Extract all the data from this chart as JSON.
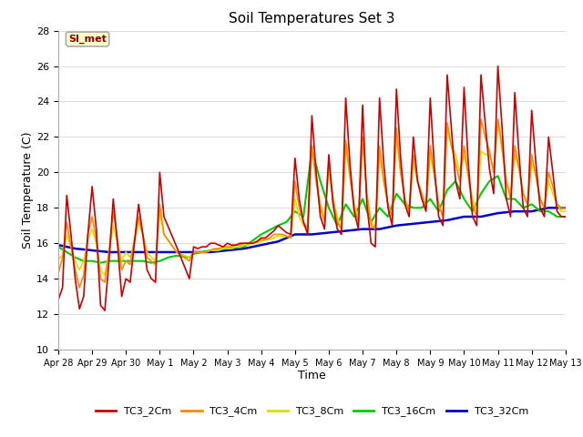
{
  "title": "Soil Temperatures Set 3",
  "xlabel": "Time",
  "ylabel": "Soil Temperature (C)",
  "ylim": [
    10,
    28
  ],
  "xlim": [
    0,
    15
  ],
  "annotation_text": "SI_met",
  "annotation_bg": "#ffffcc",
  "annotation_border": "#aaaaaa",
  "annotation_text_color": "#880000",
  "fig_bg": "#ffffff",
  "plot_bg": "#ffffff",
  "xtick_labels": [
    "Apr 28",
    "Apr 29",
    "Apr 30",
    "May 1",
    "May 2",
    "May 3",
    "May 4",
    "May 5",
    "May 6",
    "May 7",
    "May 8",
    "May 9",
    "May 10",
    "May 11",
    "May 12",
    "May 13"
  ],
  "yticks": [
    10,
    12,
    14,
    16,
    18,
    20,
    22,
    24,
    26,
    28
  ],
  "series_order": [
    "TC3_32Cm",
    "TC3_16Cm",
    "TC3_8Cm",
    "TC3_4Cm",
    "TC3_2Cm"
  ],
  "series": {
    "TC3_2Cm": {
      "color": "#cc0000",
      "lw": 1.2,
      "x": [
        0.0,
        0.125,
        0.25,
        0.375,
        0.5,
        0.625,
        0.75,
        0.875,
        1.0,
        1.125,
        1.25,
        1.375,
        1.5,
        1.625,
        1.75,
        1.875,
        2.0,
        2.125,
        2.25,
        2.375,
        2.5,
        2.625,
        2.75,
        2.875,
        3.0,
        3.125,
        3.5,
        3.875,
        4.0,
        4.125,
        4.25,
        4.375,
        4.5,
        4.625,
        4.75,
        4.875,
        5.0,
        5.125,
        5.25,
        5.375,
        5.5,
        5.625,
        5.75,
        5.875,
        6.0,
        6.125,
        6.25,
        6.375,
        6.5,
        6.625,
        6.75,
        6.875,
        7.0,
        7.125,
        7.25,
        7.375,
        7.5,
        7.625,
        7.75,
        7.875,
        8.0,
        8.125,
        8.25,
        8.375,
        8.5,
        8.625,
        8.75,
        8.875,
        9.0,
        9.125,
        9.25,
        9.375,
        9.5,
        9.625,
        9.75,
        9.875,
        10.0,
        10.125,
        10.25,
        10.375,
        10.5,
        10.625,
        10.75,
        10.875,
        11.0,
        11.125,
        11.25,
        11.375,
        11.5,
        11.625,
        11.75,
        11.875,
        12.0,
        12.125,
        12.25,
        12.375,
        12.5,
        12.625,
        12.75,
        12.875,
        13.0,
        13.125,
        13.25,
        13.375,
        13.5,
        13.625,
        13.75,
        13.875,
        14.0,
        14.125,
        14.25,
        14.375,
        14.5,
        14.625,
        14.75,
        14.875,
        15.0
      ],
      "y": [
        12.8,
        13.5,
        18.7,
        16.5,
        14.0,
        12.3,
        13.0,
        16.5,
        19.2,
        16.8,
        12.5,
        12.2,
        15.0,
        18.5,
        16.0,
        13.0,
        14.0,
        13.8,
        16.0,
        18.2,
        16.5,
        14.5,
        14.0,
        13.8,
        20.0,
        17.5,
        15.8,
        14.0,
        15.8,
        15.7,
        15.8,
        15.8,
        16.0,
        16.0,
        15.9,
        15.8,
        16.0,
        15.9,
        15.9,
        16.0,
        16.0,
        16.0,
        16.0,
        16.1,
        16.3,
        16.3,
        16.5,
        16.7,
        17.0,
        16.8,
        16.6,
        16.5,
        20.8,
        18.5,
        17.2,
        16.5,
        23.2,
        20.0,
        17.5,
        16.8,
        21.0,
        18.2,
        16.8,
        16.5,
        24.2,
        20.5,
        17.8,
        16.8,
        23.8,
        18.2,
        16.0,
        15.8,
        24.2,
        20.5,
        18.0,
        17.0,
        24.7,
        20.8,
        18.2,
        17.5,
        22.0,
        19.5,
        18.5,
        17.8,
        24.2,
        20.2,
        17.5,
        17.0,
        25.5,
        22.5,
        19.5,
        18.5,
        24.8,
        20.5,
        17.5,
        17.0,
        25.5,
        22.8,
        20.2,
        18.8,
        26.0,
        22.5,
        18.5,
        17.5,
        24.5,
        21.0,
        18.0,
        17.5,
        23.5,
        20.5,
        18.0,
        17.5,
        22.0,
        20.0,
        17.8,
        17.5,
        17.5
      ]
    },
    "TC3_4Cm": {
      "color": "#ff8800",
      "lw": 1.2,
      "x": [
        0.0,
        0.125,
        0.25,
        0.375,
        0.5,
        0.625,
        0.75,
        0.875,
        1.0,
        1.125,
        1.25,
        1.375,
        1.5,
        1.625,
        1.75,
        1.875,
        2.0,
        2.125,
        2.25,
        2.375,
        2.5,
        2.625,
        2.75,
        2.875,
        3.0,
        3.125,
        3.5,
        3.875,
        4.0,
        4.125,
        4.25,
        4.375,
        4.5,
        4.625,
        4.75,
        4.875,
        5.0,
        5.125,
        5.25,
        5.375,
        5.5,
        5.625,
        5.75,
        5.875,
        6.0,
        6.125,
        6.25,
        6.375,
        6.5,
        6.625,
        6.75,
        6.875,
        7.0,
        7.125,
        7.25,
        7.375,
        7.5,
        7.625,
        7.75,
        7.875,
        8.0,
        8.125,
        8.25,
        8.375,
        8.5,
        8.625,
        8.75,
        8.875,
        9.0,
        9.125,
        9.25,
        9.375,
        9.5,
        9.625,
        9.75,
        9.875,
        10.0,
        10.125,
        10.25,
        10.375,
        10.5,
        10.625,
        10.75,
        10.875,
        11.0,
        11.125,
        11.25,
        11.375,
        11.5,
        11.625,
        11.75,
        11.875,
        12.0,
        12.125,
        12.25,
        12.375,
        12.5,
        12.625,
        12.75,
        12.875,
        13.0,
        13.125,
        13.25,
        13.375,
        13.5,
        13.625,
        13.75,
        13.875,
        14.0,
        14.125,
        14.25,
        14.375,
        14.5,
        14.625,
        14.75,
        14.875,
        15.0
      ],
      "y": [
        14.3,
        15.2,
        17.2,
        15.8,
        14.5,
        13.5,
        14.2,
        16.5,
        17.5,
        16.2,
        14.0,
        13.8,
        15.5,
        17.8,
        16.2,
        14.5,
        15.0,
        14.8,
        16.2,
        17.5,
        16.5,
        15.2,
        15.0,
        14.8,
        18.2,
        16.5,
        15.5,
        15.0,
        15.5,
        15.5,
        15.5,
        15.5,
        15.6,
        15.7,
        15.7,
        15.8,
        15.8,
        15.8,
        15.9,
        15.9,
        16.0,
        16.0,
        16.0,
        16.1,
        16.2,
        16.2,
        16.3,
        16.5,
        16.5,
        16.5,
        16.4,
        16.3,
        19.5,
        18.0,
        17.2,
        16.8,
        21.5,
        19.5,
        18.0,
        17.2,
        20.5,
        18.5,
        17.2,
        16.8,
        21.8,
        19.8,
        18.0,
        17.2,
        22.0,
        18.8,
        17.0,
        16.8,
        21.5,
        19.5,
        18.2,
        17.5,
        22.5,
        20.0,
        18.5,
        17.8,
        21.0,
        19.5,
        18.8,
        18.0,
        21.5,
        19.8,
        18.2,
        17.5,
        22.8,
        21.5,
        20.5,
        19.5,
        21.5,
        19.8,
        18.2,
        17.5,
        23.0,
        22.0,
        21.2,
        20.0,
        23.0,
        21.5,
        19.5,
        18.5,
        21.5,
        20.2,
        18.8,
        18.2,
        21.0,
        19.8,
        18.5,
        18.0,
        20.0,
        19.2,
        18.2,
        18.0,
        18.0
      ]
    },
    "TC3_8Cm": {
      "color": "#dddd00",
      "lw": 1.2,
      "x": [
        0.0,
        0.125,
        0.25,
        0.375,
        0.5,
        0.625,
        0.75,
        0.875,
        1.0,
        1.125,
        1.25,
        1.375,
        1.5,
        1.625,
        1.75,
        1.875,
        2.0,
        2.125,
        2.25,
        2.375,
        2.5,
        2.625,
        2.75,
        2.875,
        3.0,
        3.125,
        3.5,
        3.875,
        4.0,
        4.125,
        4.25,
        4.375,
        4.5,
        4.625,
        4.75,
        4.875,
        5.0,
        5.125,
        5.25,
        5.375,
        5.5,
        5.625,
        5.75,
        5.875,
        6.0,
        6.125,
        6.25,
        6.375,
        6.5,
        6.625,
        6.75,
        6.875,
        7.0,
        7.125,
        7.25,
        7.375,
        7.5,
        7.625,
        7.75,
        7.875,
        8.0,
        8.125,
        8.25,
        8.375,
        8.5,
        8.625,
        8.75,
        8.875,
        9.0,
        9.125,
        9.25,
        9.375,
        9.5,
        9.625,
        9.75,
        9.875,
        10.0,
        10.125,
        10.25,
        10.375,
        10.5,
        10.625,
        10.75,
        10.875,
        11.0,
        11.125,
        11.25,
        11.375,
        11.5,
        11.625,
        11.75,
        11.875,
        12.0,
        12.125,
        12.25,
        12.375,
        12.5,
        12.625,
        12.75,
        12.875,
        13.0,
        13.125,
        13.25,
        13.375,
        13.5,
        13.625,
        13.75,
        13.875,
        14.0,
        14.125,
        14.25,
        14.375,
        14.5,
        14.625,
        14.75,
        14.875,
        15.0
      ],
      "y": [
        15.1,
        15.3,
        16.5,
        15.8,
        15.0,
        14.5,
        15.0,
        16.2,
        16.8,
        16.0,
        14.5,
        14.2,
        15.5,
        17.0,
        16.0,
        15.0,
        15.5,
        15.2,
        16.0,
        17.2,
        16.5,
        15.5,
        15.2,
        15.0,
        17.8,
        16.5,
        15.5,
        15.2,
        15.5,
        15.5,
        15.5,
        15.5,
        15.6,
        15.6,
        15.6,
        15.7,
        15.7,
        15.7,
        15.8,
        15.8,
        15.9,
        15.9,
        16.0,
        16.0,
        16.1,
        16.2,
        16.2,
        16.3,
        16.4,
        16.4,
        16.4,
        16.3,
        18.5,
        17.5,
        17.0,
        16.8,
        21.5,
        19.8,
        18.2,
        17.5,
        20.2,
        18.5,
        17.5,
        16.8,
        21.5,
        19.8,
        18.2,
        17.5,
        21.8,
        18.8,
        17.2,
        16.8,
        21.0,
        19.5,
        18.2,
        17.5,
        22.0,
        20.0,
        18.5,
        17.8,
        20.5,
        19.5,
        18.8,
        18.0,
        21.0,
        19.8,
        18.2,
        17.5,
        22.5,
        21.5,
        21.0,
        20.0,
        21.0,
        19.8,
        18.5,
        17.8,
        21.2,
        21.0,
        21.0,
        20.2,
        22.8,
        21.2,
        19.5,
        18.8,
        21.0,
        20.2,
        18.8,
        18.2,
        20.5,
        19.8,
        18.5,
        18.0,
        19.5,
        18.8,
        18.2,
        17.8,
        17.8
      ]
    },
    "TC3_16Cm": {
      "color": "#00cc00",
      "lw": 1.5,
      "x": [
        0.0,
        0.25,
        0.5,
        0.75,
        1.0,
        1.25,
        1.5,
        1.75,
        2.0,
        2.25,
        2.5,
        2.75,
        3.0,
        3.25,
        3.5,
        3.875,
        4.0,
        4.5,
        5.0,
        5.5,
        6.0,
        6.5,
        6.75,
        7.0,
        7.25,
        7.5,
        7.75,
        8.0,
        8.25,
        8.5,
        8.75,
        9.0,
        9.25,
        9.5,
        9.75,
        10.0,
        10.25,
        10.5,
        10.75,
        11.0,
        11.25,
        11.5,
        11.75,
        12.0,
        12.25,
        12.5,
        12.75,
        13.0,
        13.25,
        13.5,
        13.75,
        14.0,
        14.25,
        14.5,
        14.75,
        15.0
      ],
      "y": [
        15.8,
        15.5,
        15.2,
        15.0,
        15.0,
        14.9,
        15.0,
        15.0,
        15.0,
        15.0,
        15.0,
        14.9,
        15.0,
        15.2,
        15.3,
        15.2,
        15.4,
        15.6,
        15.7,
        15.8,
        16.5,
        17.0,
        17.2,
        17.8,
        17.5,
        21.3,
        19.5,
        18.0,
        17.0,
        18.2,
        17.5,
        18.5,
        17.2,
        18.0,
        17.5,
        18.8,
        18.2,
        18.0,
        18.0,
        18.5,
        17.8,
        19.0,
        19.5,
        18.5,
        17.8,
        18.8,
        19.5,
        19.8,
        18.5,
        18.5,
        18.0,
        18.2,
        17.8,
        17.8,
        17.5,
        17.5
      ]
    },
    "TC3_32Cm": {
      "color": "#0000cc",
      "lw": 1.8,
      "x": [
        0.0,
        0.5,
        1.0,
        1.5,
        2.0,
        2.5,
        3.0,
        3.5,
        4.0,
        4.5,
        5.0,
        5.5,
        6.0,
        6.5,
        7.0,
        7.5,
        8.0,
        8.5,
        9.0,
        9.5,
        10.0,
        10.5,
        11.0,
        11.5,
        12.0,
        12.5,
        13.0,
        13.5,
        14.0,
        14.5,
        15.0
      ],
      "y": [
        15.9,
        15.7,
        15.6,
        15.5,
        15.5,
        15.5,
        15.5,
        15.5,
        15.5,
        15.5,
        15.6,
        15.7,
        15.9,
        16.1,
        16.5,
        16.5,
        16.6,
        16.7,
        16.8,
        16.8,
        17.0,
        17.1,
        17.2,
        17.3,
        17.5,
        17.5,
        17.7,
        17.8,
        17.8,
        18.0,
        18.0
      ]
    }
  },
  "legend": [
    {
      "label": "TC3_2Cm",
      "color": "#cc0000"
    },
    {
      "label": "TC3_4Cm",
      "color": "#ff8800"
    },
    {
      "label": "TC3_8Cm",
      "color": "#dddd00"
    },
    {
      "label": "TC3_16Cm",
      "color": "#00cc00"
    },
    {
      "label": "TC3_32Cm",
      "color": "#0000cc"
    }
  ]
}
